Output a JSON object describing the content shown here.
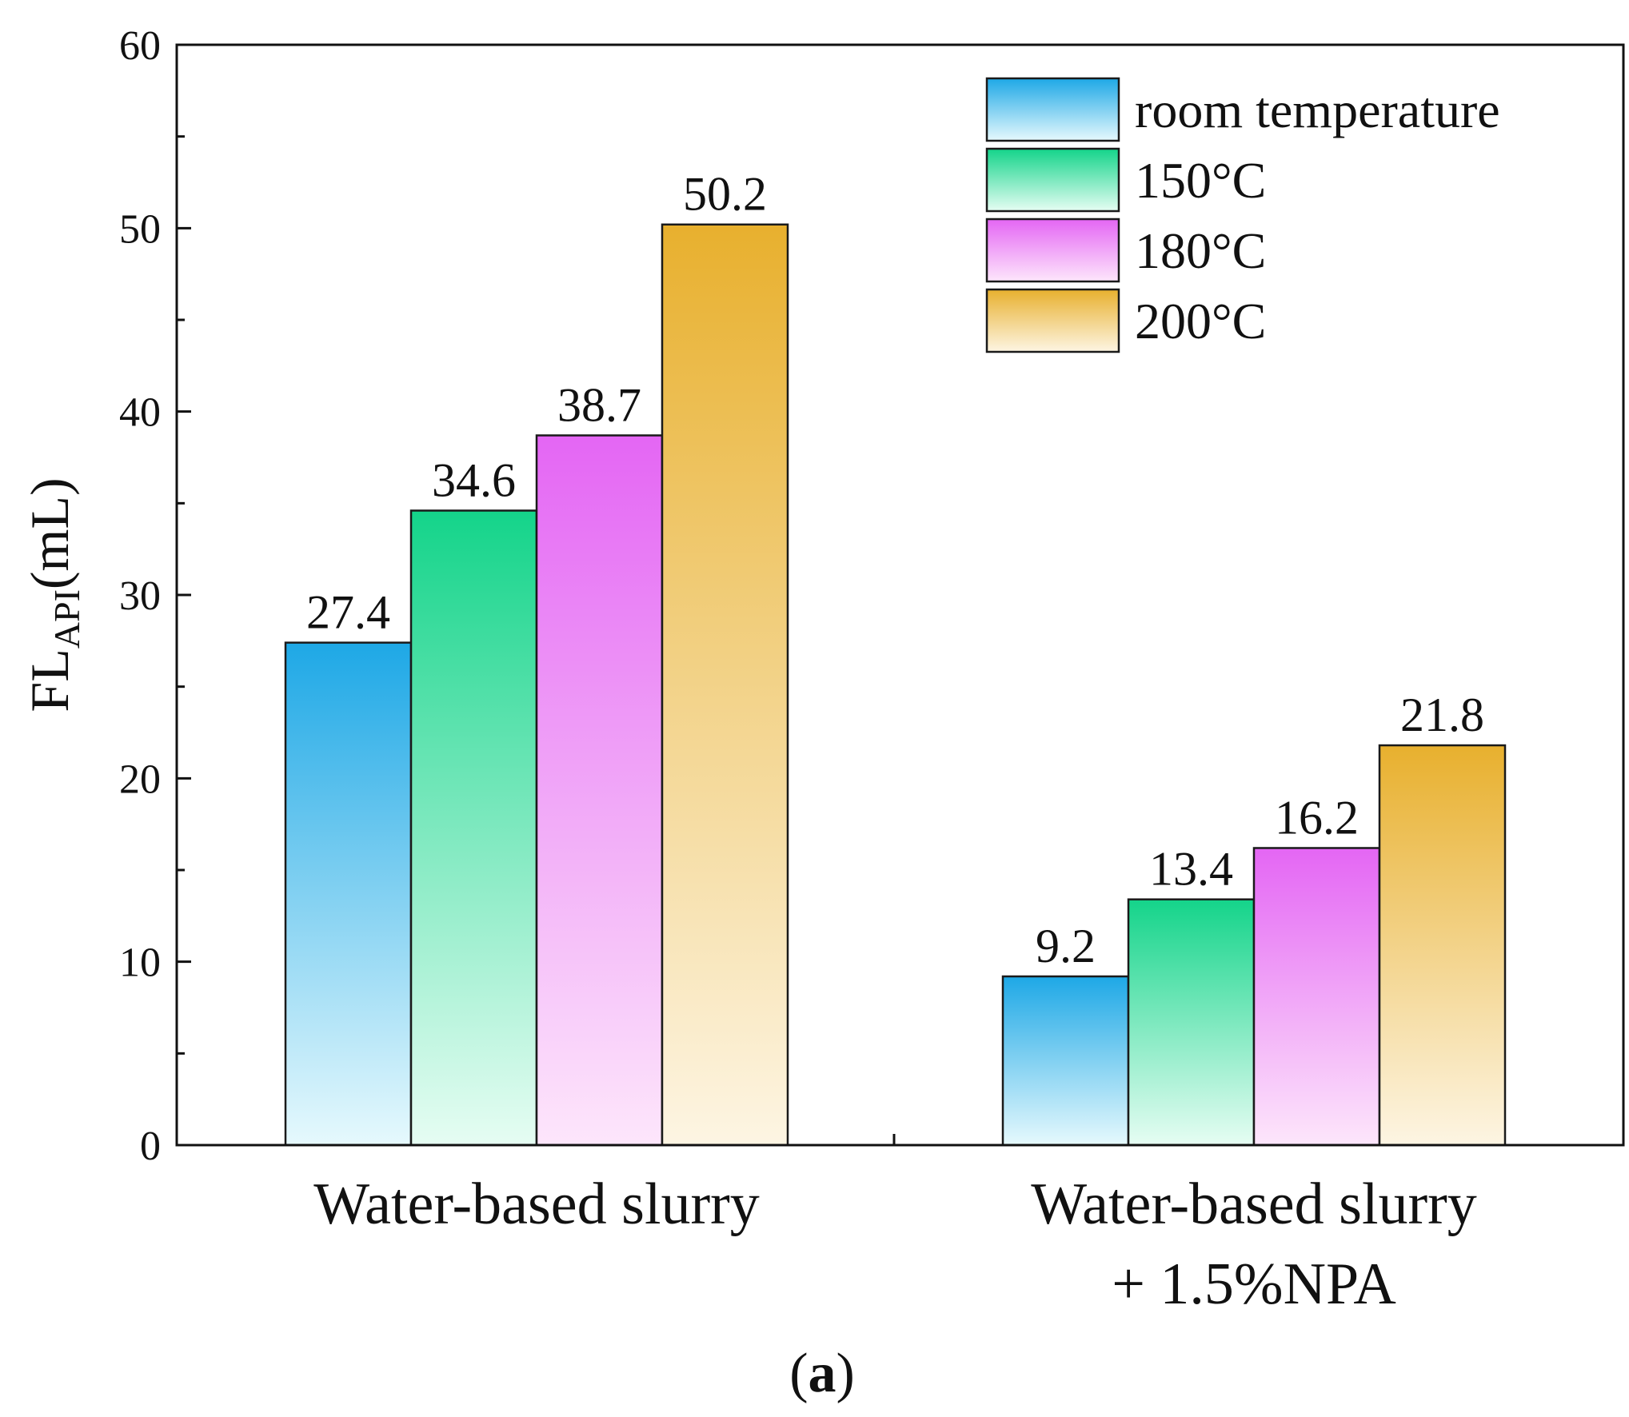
{
  "chart_data": {
    "type": "bar",
    "categories": [
      [
        "Water-based slurry"
      ],
      [
        "Water-based slurry",
        "+ 1.5%NPA"
      ]
    ],
    "series": [
      {
        "name": "room temperature",
        "values": [
          27.4,
          9.2
        ],
        "color_top": "#1ea8e6",
        "color_bottom": "#e6f9fd"
      },
      {
        "name": "150°C",
        "values": [
          34.6,
          13.4
        ],
        "color_top": "#14d48a",
        "color_bottom": "#e6fdf3"
      },
      {
        "name": "180°C",
        "values": [
          38.7,
          16.2
        ],
        "color_top": "#e466f4",
        "color_bottom": "#fde6fb"
      },
      {
        "name": "200°C",
        "values": [
          50.2,
          21.8
        ],
        "color_top": "#e8b02e",
        "color_bottom": "#fdf5e3"
      }
    ],
    "data_labels": [
      [
        "27.4",
        "9.2"
      ],
      [
        "34.6",
        "13.4"
      ],
      [
        "38.7",
        "16.2"
      ],
      [
        "50.2",
        "21.8"
      ]
    ],
    "ylabel_main": "FL",
    "ylabel_sub": "API",
    "ylabel_unit": "(mL)",
    "xlabel": "",
    "ylim": [
      0,
      60
    ],
    "yticks": [
      0,
      10,
      20,
      30,
      40,
      50,
      60
    ],
    "legend_position": "top-right",
    "grid": false,
    "panel_label_open": "(",
    "panel_label_letter": "a",
    "panel_label_close": ")"
  }
}
